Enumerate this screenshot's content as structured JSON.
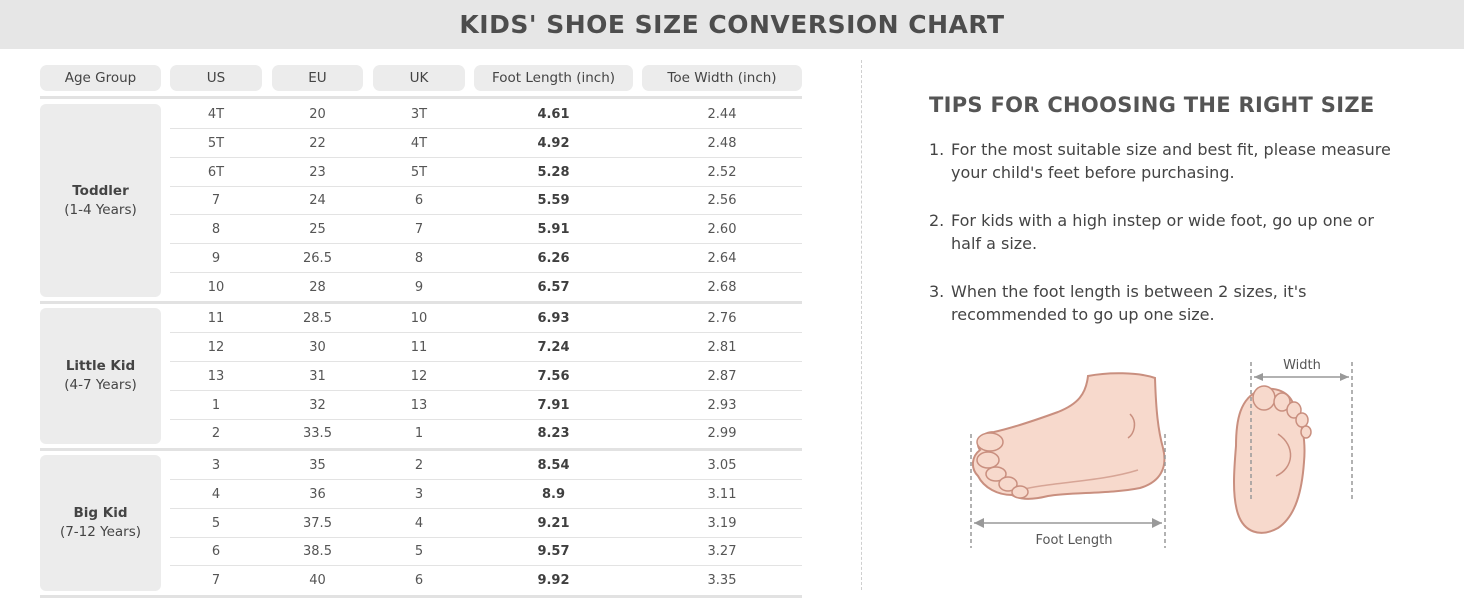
{
  "page": {
    "title": "KIDS' SHOE SIZE CONVERSION CHART"
  },
  "table": {
    "headers": [
      "Age Group",
      "US",
      "EU",
      "UK",
      "Foot Length (inch)",
      "Toe Width (inch)"
    ],
    "groups": [
      {
        "name": "Toddler",
        "range": "(1-4 Years)",
        "rows": [
          [
            "4T",
            "20",
            "3T",
            "4.61",
            "2.44"
          ],
          [
            "5T",
            "22",
            "4T",
            "4.92",
            "2.48"
          ],
          [
            "6T",
            "23",
            "5T",
            "5.28",
            "2.52"
          ],
          [
            "7",
            "24",
            "6",
            "5.59",
            "2.56"
          ],
          [
            "8",
            "25",
            "7",
            "5.91",
            "2.60"
          ],
          [
            "9",
            "26.5",
            "8",
            "6.26",
            "2.64"
          ],
          [
            "10",
            "28",
            "9",
            "6.57",
            "2.68"
          ]
        ]
      },
      {
        "name": "Little Kid",
        "range": "(4-7 Years)",
        "rows": [
          [
            "11",
            "28.5",
            "10",
            "6.93",
            "2.76"
          ],
          [
            "12",
            "30",
            "11",
            "7.24",
            "2.81"
          ],
          [
            "13",
            "31",
            "12",
            "7.56",
            "2.87"
          ],
          [
            "1",
            "32",
            "13",
            "7.91",
            "2.93"
          ],
          [
            "2",
            "33.5",
            "1",
            "8.23",
            "2.99"
          ]
        ]
      },
      {
        "name": "Big Kid",
        "range": "(7-12 Years)",
        "rows": [
          [
            "3",
            "35",
            "2",
            "8.54",
            "3.05"
          ],
          [
            "4",
            "36",
            "3",
            "8.9",
            "3.11"
          ],
          [
            "5",
            "37.5",
            "4",
            "9.21",
            "3.19"
          ],
          [
            "6",
            "38.5",
            "5",
            "9.57",
            "3.27"
          ],
          [
            "7",
            "40",
            "6",
            "9.92",
            "3.35"
          ]
        ]
      }
    ]
  },
  "tips": {
    "heading": "TIPS FOR CHOOSING THE RIGHT SIZE",
    "items": [
      {
        "num": "1.",
        "text": "For the most suitable size and best fit, please measure your child's feet before purchasing."
      },
      {
        "num": "2.",
        "text": "For kids with a high instep or wide foot, go up one or half a size."
      },
      {
        "num": "3.",
        "text": "When the foot length is between 2 sizes, it's recommended to go up one size."
      }
    ]
  },
  "illustration": {
    "foot_length_label": "Foot  Length",
    "width_label": "Width",
    "skin_fill": "#f7d9cc",
    "skin_stroke": "#c98f7f",
    "measure_color": "#999999"
  }
}
